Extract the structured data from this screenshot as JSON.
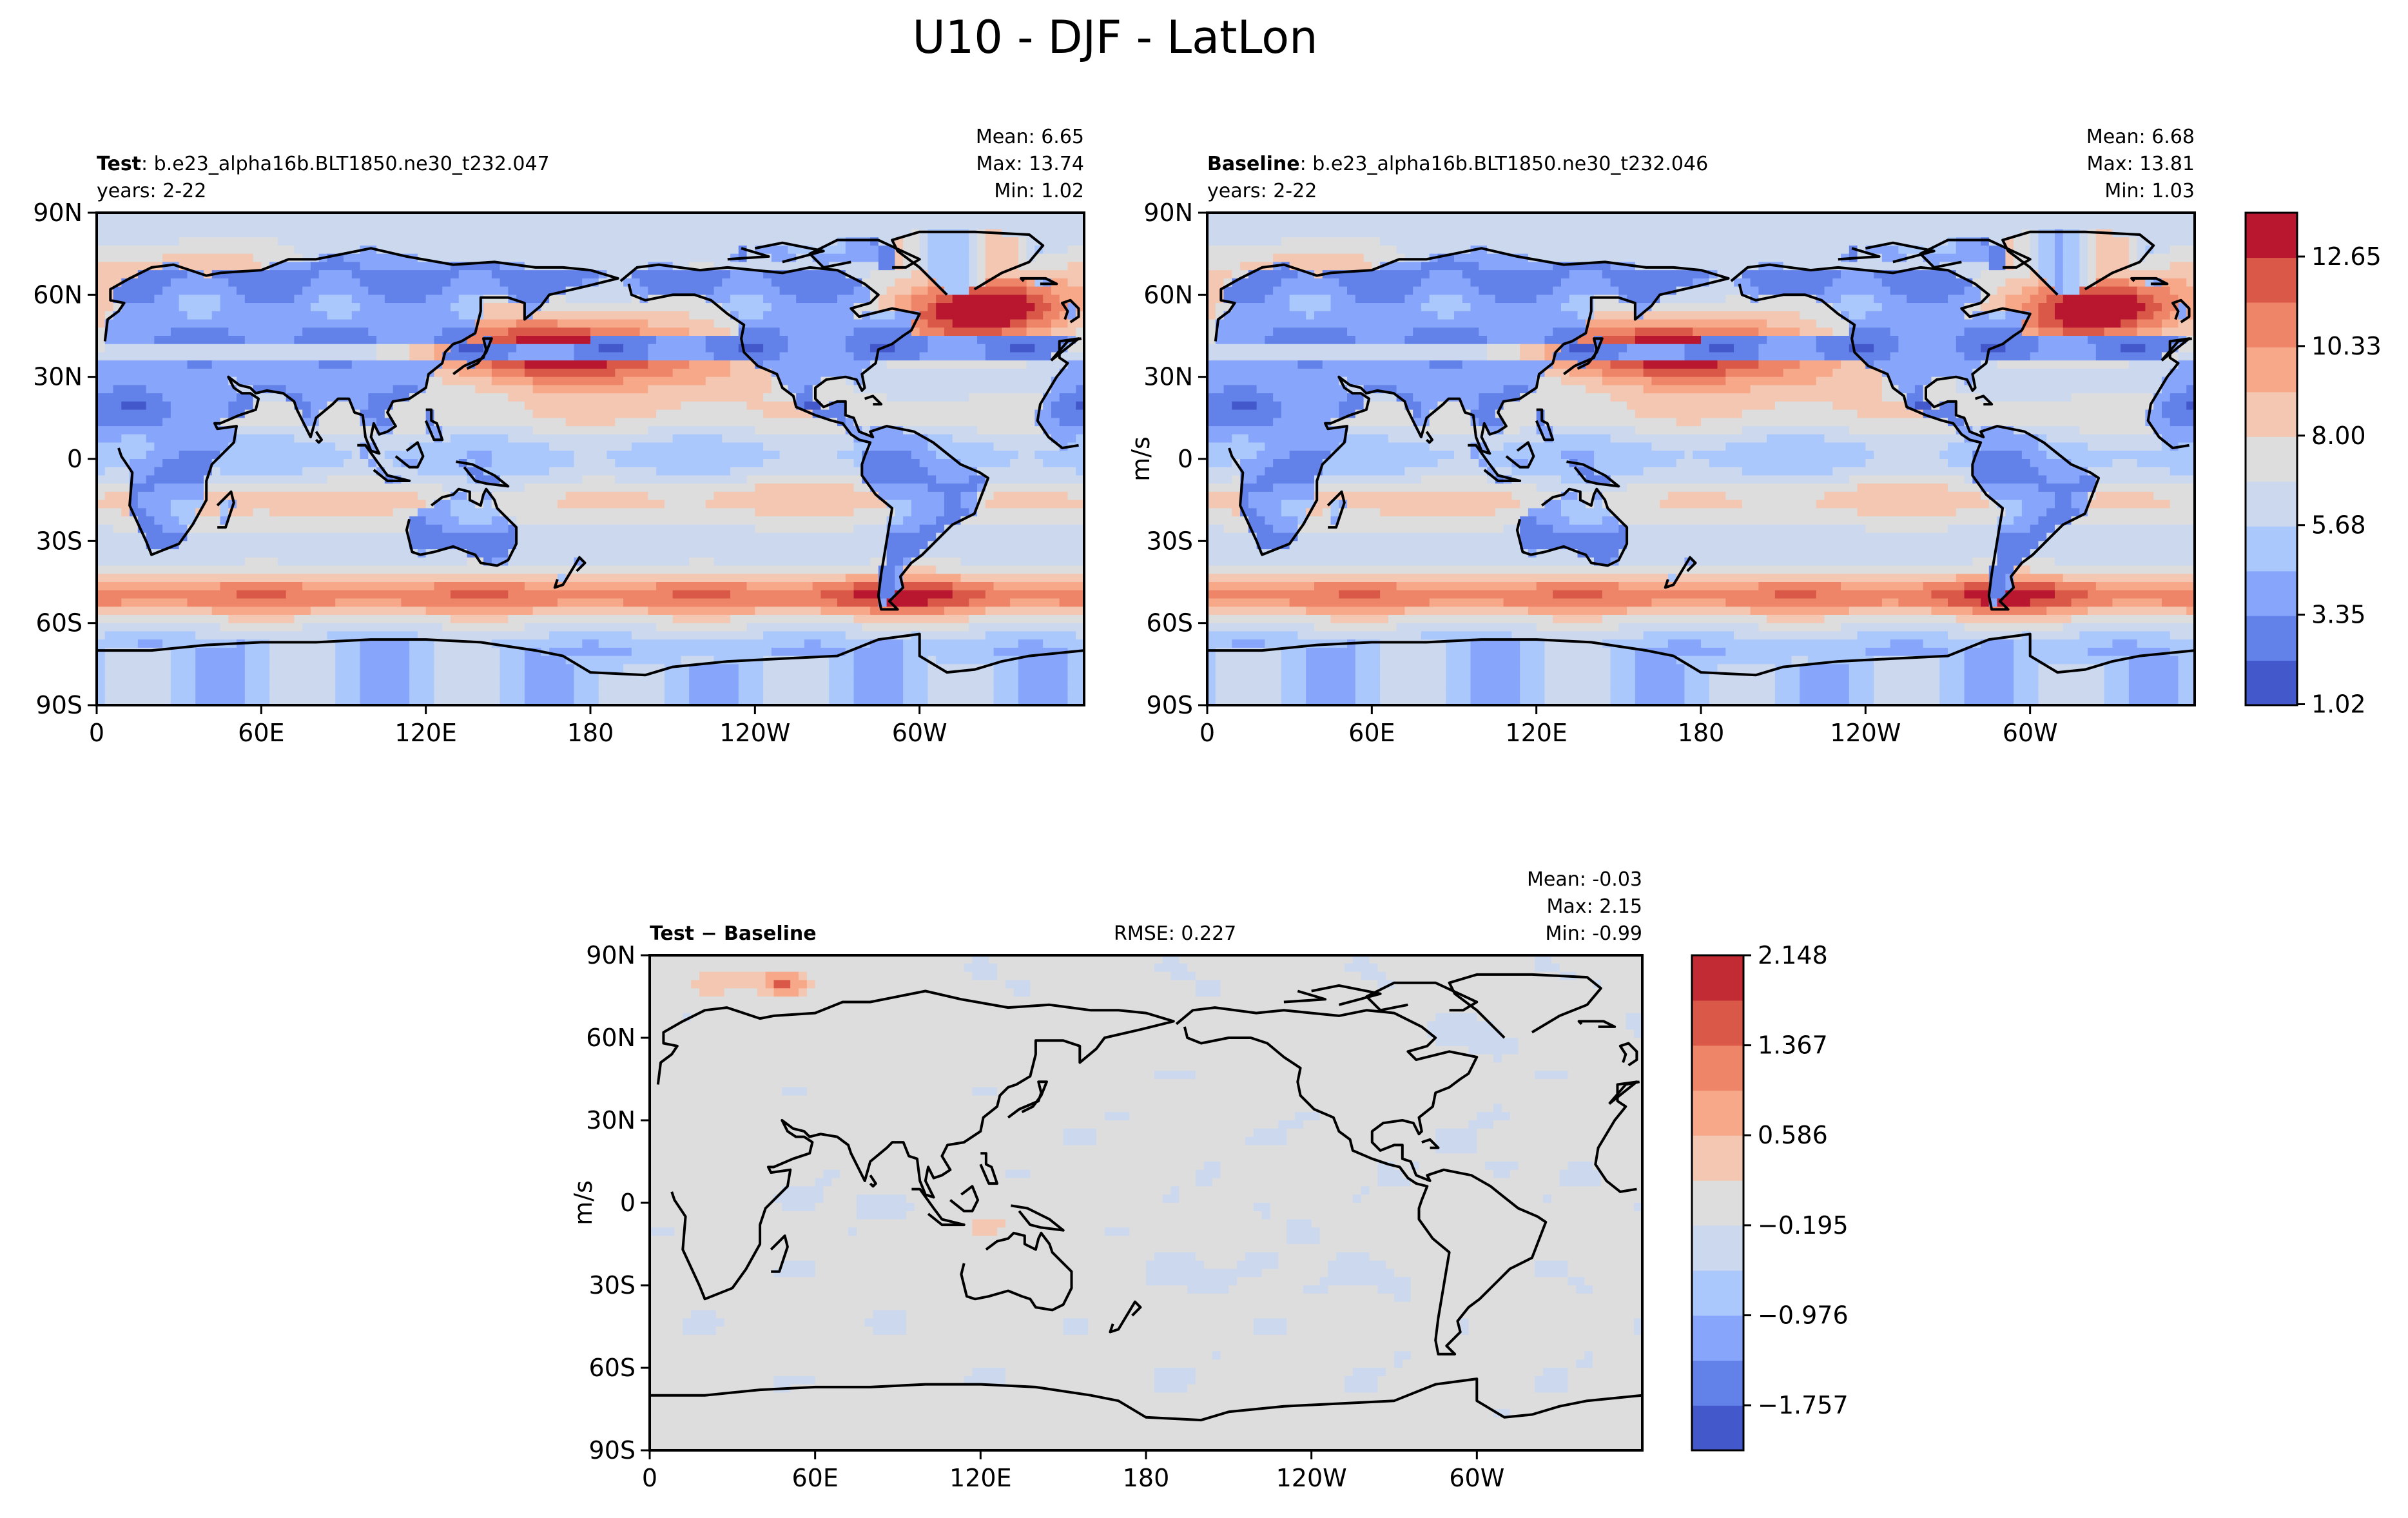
{
  "figure": {
    "title": "U10 - DJF - LatLon"
  },
  "colors": {
    "main_levels": [
      "#4358cb",
      "#6282ea",
      "#87a6fb",
      "#abc8fd",
      "#cbd8ee",
      "#dddddd",
      "#f3c7b1",
      "#f7a889",
      "#ee8468",
      "#d95847",
      "#b9172f"
    ],
    "diff_levels": [
      "#4358cb",
      "#6282ea",
      "#87a6fb",
      "#abc8fd",
      "#cbd8ee",
      "#dddddd",
      "#f3c7b1",
      "#f7a889",
      "#ee8468",
      "#d95847",
      "#c32b34"
    ]
  },
  "chart_data": [
    {
      "type": "heatmap",
      "panel": "test",
      "label_bold": "Test",
      "label_rest": ": b.e23_alpha16b.BLT1850.ne30_t232.047",
      "years": "years: 2-22",
      "stats": [
        "Mean:  6.65",
        "Max: 13.74",
        "Min:  1.02"
      ],
      "xlim": [
        0,
        360
      ],
      "ylim": [
        -90,
        90
      ],
      "xticks": [
        "0",
        "60E",
        "120E",
        "180",
        "120W",
        "60W"
      ],
      "yticks": [
        "90N",
        "60N",
        "30N",
        "0",
        "30S",
        "60S",
        "90S"
      ],
      "mean": 6.65,
      "max": 13.74,
      "min": 1.02
    },
    {
      "type": "heatmap",
      "panel": "baseline",
      "label_bold": "Baseline",
      "label_rest": ": b.e23_alpha16b.BLT1850.ne30_t232.046",
      "years": "years: 2-22",
      "stats": [
        "Mean:  6.68",
        "Max: 13.81",
        "Min:  1.03"
      ],
      "xlim": [
        0,
        360
      ],
      "ylim": [
        -90,
        90
      ],
      "xticks": [
        "0",
        "60E",
        "120E",
        "180",
        "120W",
        "60W"
      ],
      "yticks": [
        "90N",
        "60N",
        "30N",
        "0",
        "30S",
        "60S",
        "90S"
      ],
      "mean": 6.68,
      "max": 13.81,
      "min": 1.03,
      "colorbar": {
        "label": "m/s",
        "ticks": [
          "12.65",
          "10.33",
          "8.00",
          "5.68",
          "3.35",
          "1.02"
        ]
      }
    },
    {
      "type": "heatmap",
      "panel": "difference",
      "label_bold": "Test − Baseline",
      "rmse": "RMSE: 0.227",
      "stats": [
        "Mean: -0.03",
        "Max:  2.15",
        "Min: -0.99"
      ],
      "xlim": [
        0,
        360
      ],
      "ylim": [
        -90,
        90
      ],
      "xticks": [
        "0",
        "60E",
        "120E",
        "180",
        "120W",
        "60W"
      ],
      "yticks": [
        "90N",
        "60N",
        "30N",
        "0",
        "30S",
        "60S",
        "90S"
      ],
      "mean": -0.03,
      "max": 2.15,
      "min": -0.99,
      "colorbar": {
        "label": "m/s",
        "ticks": [
          "2.148",
          "1.367",
          "0.586",
          "−0.195",
          "−0.976",
          "−1.757"
        ]
      }
    }
  ]
}
